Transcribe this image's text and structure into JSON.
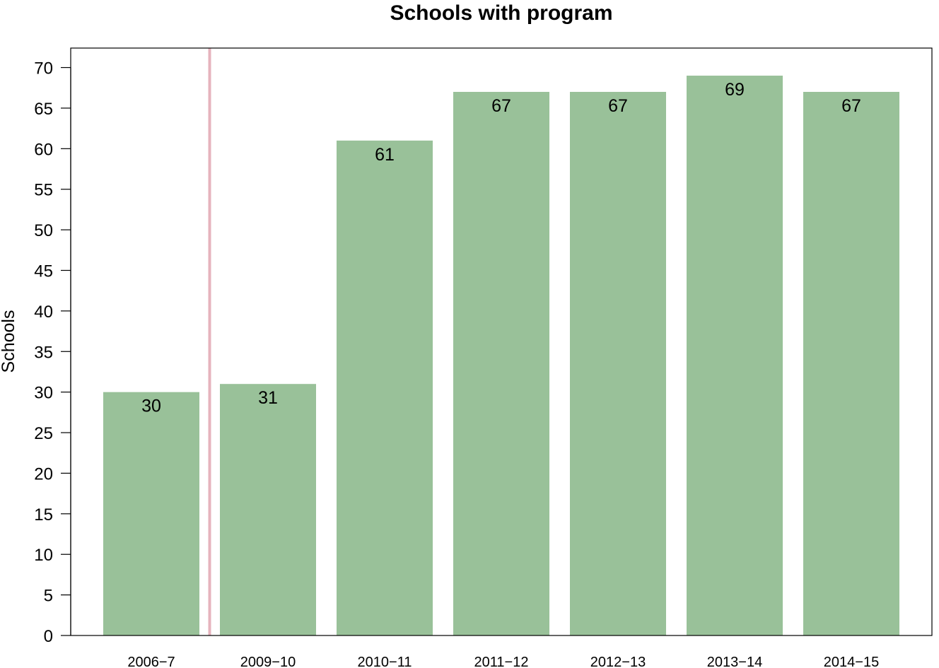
{
  "chart_data": {
    "type": "bar",
    "title": "Schools with program",
    "xlabel": "",
    "ylabel": "Schools",
    "categories": [
      "2006−7",
      "2009−10",
      "2010−11",
      "2011−12",
      "2012−13",
      "2013−14",
      "2014−15"
    ],
    "values": [
      30,
      31,
      61,
      67,
      67,
      69,
      67
    ],
    "ylim": [
      0,
      72.4
    ],
    "yticks": [
      0,
      5,
      10,
      15,
      20,
      25,
      30,
      35,
      40,
      45,
      50,
      55,
      60,
      65,
      70
    ],
    "data_labels": [
      "30",
      "31",
      "61",
      "67",
      "67",
      "69",
      "67"
    ],
    "reference_line_after_category": "2006−7",
    "grid": false,
    "bar_color": "#99c199",
    "reference_line_color": "#e6b3bd"
  }
}
